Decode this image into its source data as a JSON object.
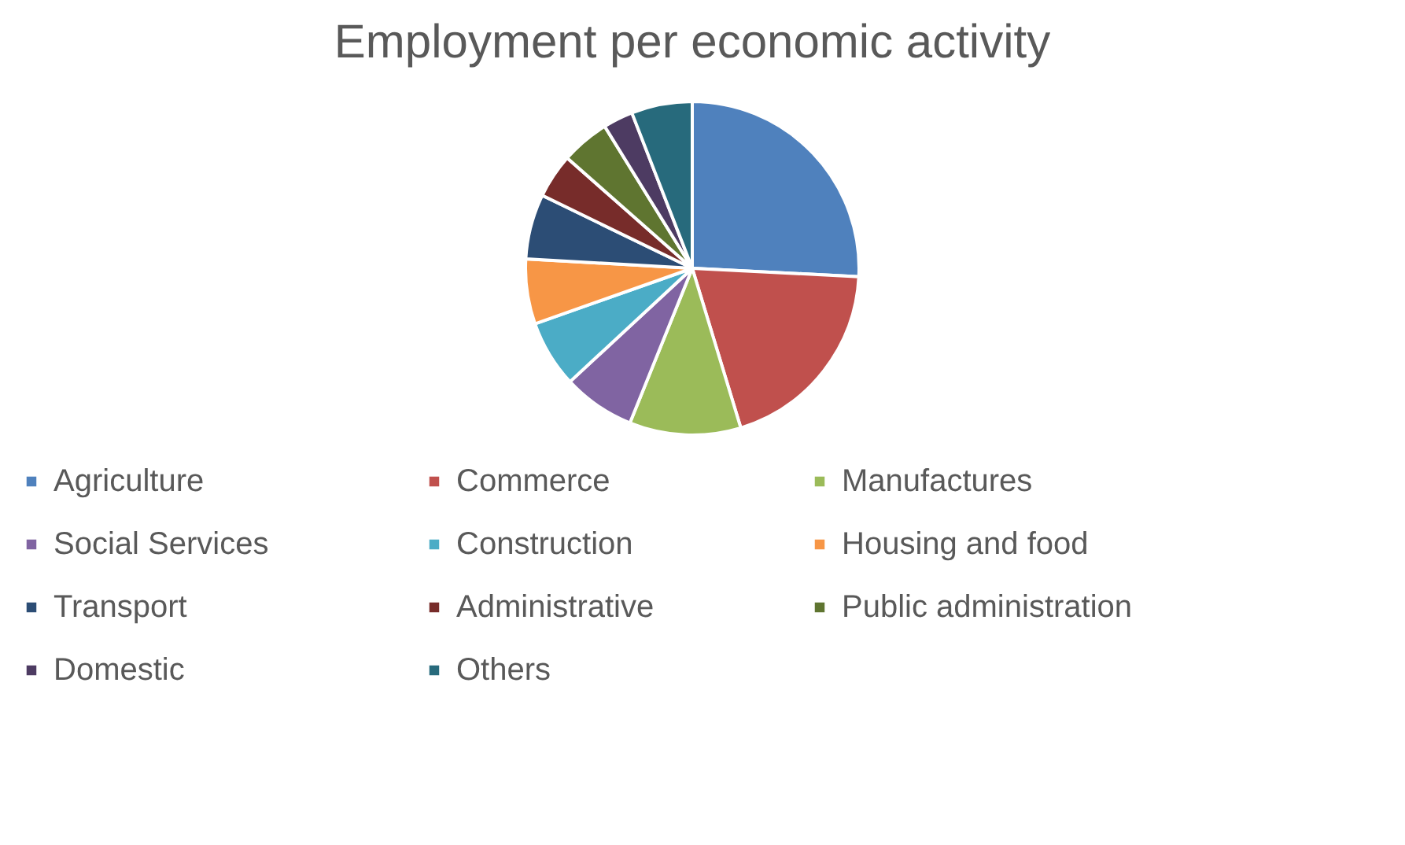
{
  "chart_data": {
    "type": "pie",
    "title": "Employment per economic activity",
    "categories": [
      "Agriculture",
      "Commerce",
      "Manufactures",
      "Social Services",
      "Construction",
      "Housing and food",
      "Transport",
      "Administrative",
      "Public administration",
      "Domestic",
      "Others"
    ],
    "values": [
      25.8,
      19.5,
      10.8,
      7.0,
      6.5,
      6.3,
      6.3,
      4.3,
      4.7,
      2.9,
      5.9
    ],
    "colors": [
      "#4f81bd",
      "#c0504d",
      "#9bbb59",
      "#8064a2",
      "#4bacc6",
      "#f79646",
      "#2c4d75",
      "#772c2a",
      "#5f7530",
      "#4d3b62",
      "#276a7c"
    ],
    "legend": "bottom"
  }
}
